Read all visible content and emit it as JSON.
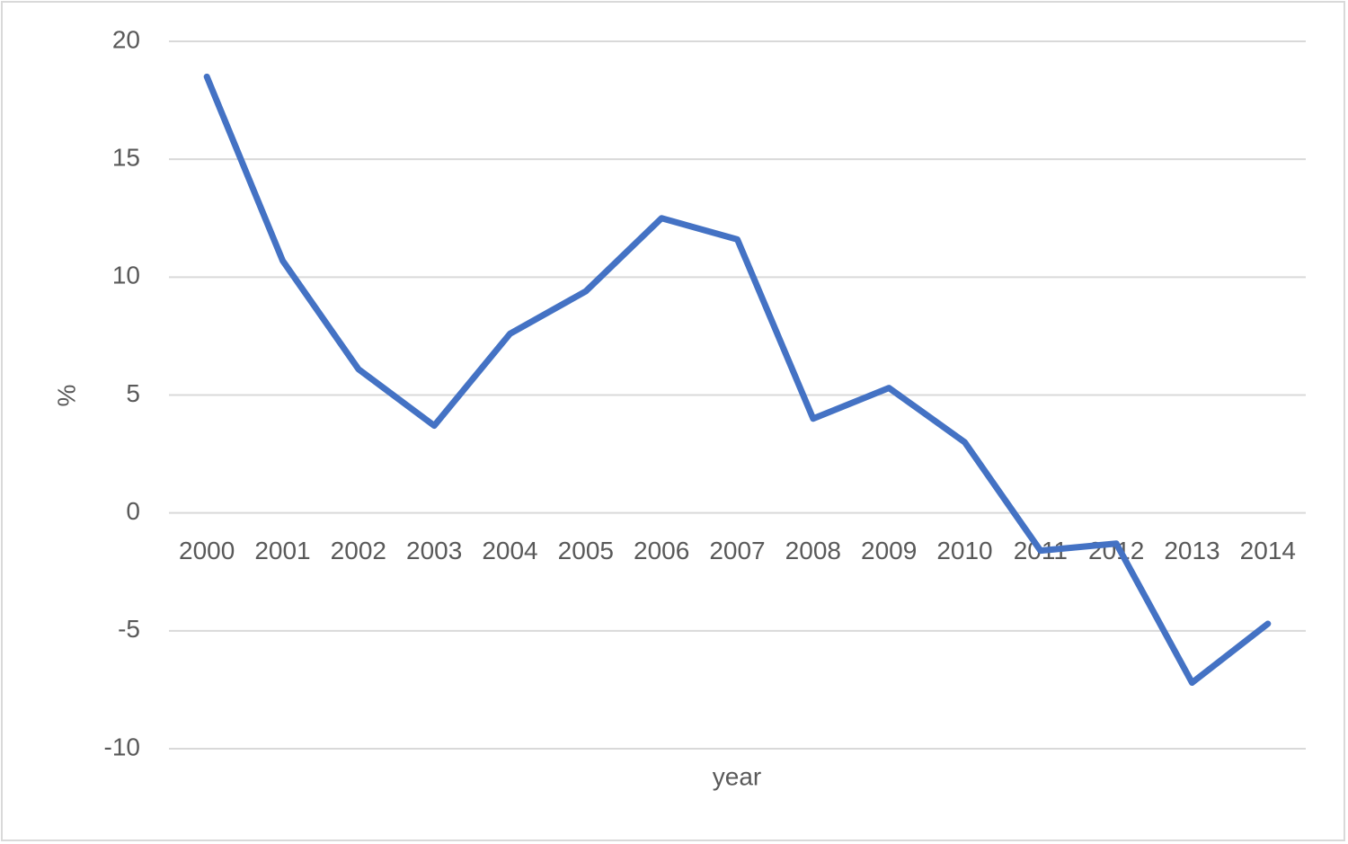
{
  "chart_data": {
    "type": "line",
    "x_label": "year",
    "y_label": "%",
    "categories": [
      "2000",
      "2001",
      "2002",
      "2003",
      "2004",
      "2005",
      "2006",
      "2007",
      "2008",
      "2009",
      "2010",
      "2011",
      "2012",
      "2013",
      "2014"
    ],
    "series": [
      {
        "color": "#4472c4",
        "values": [
          18.5,
          10.7,
          6.1,
          3.7,
          7.6,
          9.4,
          12.5,
          11.6,
          4.0,
          5.3,
          3.0,
          -1.6,
          -1.3,
          -7.2,
          -4.7
        ]
      }
    ],
    "ylim": [
      -10,
      20
    ],
    "yticks": [
      -10,
      -5,
      0,
      5,
      10,
      15,
      20
    ],
    "grid": true
  }
}
